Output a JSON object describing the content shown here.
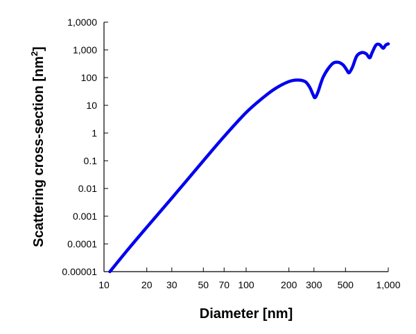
{
  "chart_data": {
    "type": "line",
    "title": "",
    "xlabel": "Diameter [nm]",
    "ylabel_main": "Scattering cross-section [nm",
    "ylabel_sup": "2",
    "ylabel_end": "]",
    "x_scale": "log",
    "y_scale": "log",
    "xlim": [
      10,
      1000
    ],
    "ylim": [
      1e-05,
      10000
    ],
    "grid": false,
    "legend": "none",
    "x_ticks": [
      {
        "value": 10,
        "label": "10"
      },
      {
        "value": 20,
        "label": "20"
      },
      {
        "value": 30,
        "label": "30"
      },
      {
        "value": 50,
        "label": "50"
      },
      {
        "value": 70,
        "label": "70"
      },
      {
        "value": 100,
        "label": "100"
      },
      {
        "value": 200,
        "label": "200"
      },
      {
        "value": 300,
        "label": "300"
      },
      {
        "value": 500,
        "label": "500"
      },
      {
        "value": 1000,
        "label": "1,000"
      }
    ],
    "y_ticks": [
      {
        "value": 1e-05,
        "label": "0.00001"
      },
      {
        "value": 0.0001,
        "label": "0.0001"
      },
      {
        "value": 0.001,
        "label": "0.001"
      },
      {
        "value": 0.01,
        "label": "0.01"
      },
      {
        "value": 0.1,
        "label": "0.1"
      },
      {
        "value": 1,
        "label": "1"
      },
      {
        "value": 10,
        "label": "10"
      },
      {
        "value": 100,
        "label": "100"
      },
      {
        "value": 1000,
        "label": "1,000"
      },
      {
        "value": 10000,
        "label": "1,0000"
      }
    ],
    "series": [
      {
        "color": "#0000ee",
        "points": [
          [
            11,
            1e-05
          ],
          [
            15,
            7e-05
          ],
          [
            20,
            0.0004
          ],
          [
            30,
            0.0045
          ],
          [
            50,
            0.1
          ],
          [
            70,
            0.75
          ],
          [
            100,
            5.5
          ],
          [
            130,
            18
          ],
          [
            160,
            40
          ],
          [
            200,
            72
          ],
          [
            230,
            82
          ],
          [
            260,
            72
          ],
          [
            280,
            45
          ],
          [
            295,
            25
          ],
          [
            305,
            19
          ],
          [
            320,
            30
          ],
          [
            350,
            110
          ],
          [
            400,
            300
          ],
          [
            440,
            360
          ],
          [
            480,
            290
          ],
          [
            510,
            190
          ],
          [
            530,
            150
          ],
          [
            560,
            240
          ],
          [
            600,
            600
          ],
          [
            650,
            800
          ],
          [
            700,
            720
          ],
          [
            740,
            520
          ],
          [
            770,
            800
          ],
          [
            820,
            1500
          ],
          [
            870,
            1550
          ],
          [
            920,
            1150
          ],
          [
            960,
            1500
          ],
          [
            1000,
            1650
          ]
        ]
      }
    ]
  }
}
